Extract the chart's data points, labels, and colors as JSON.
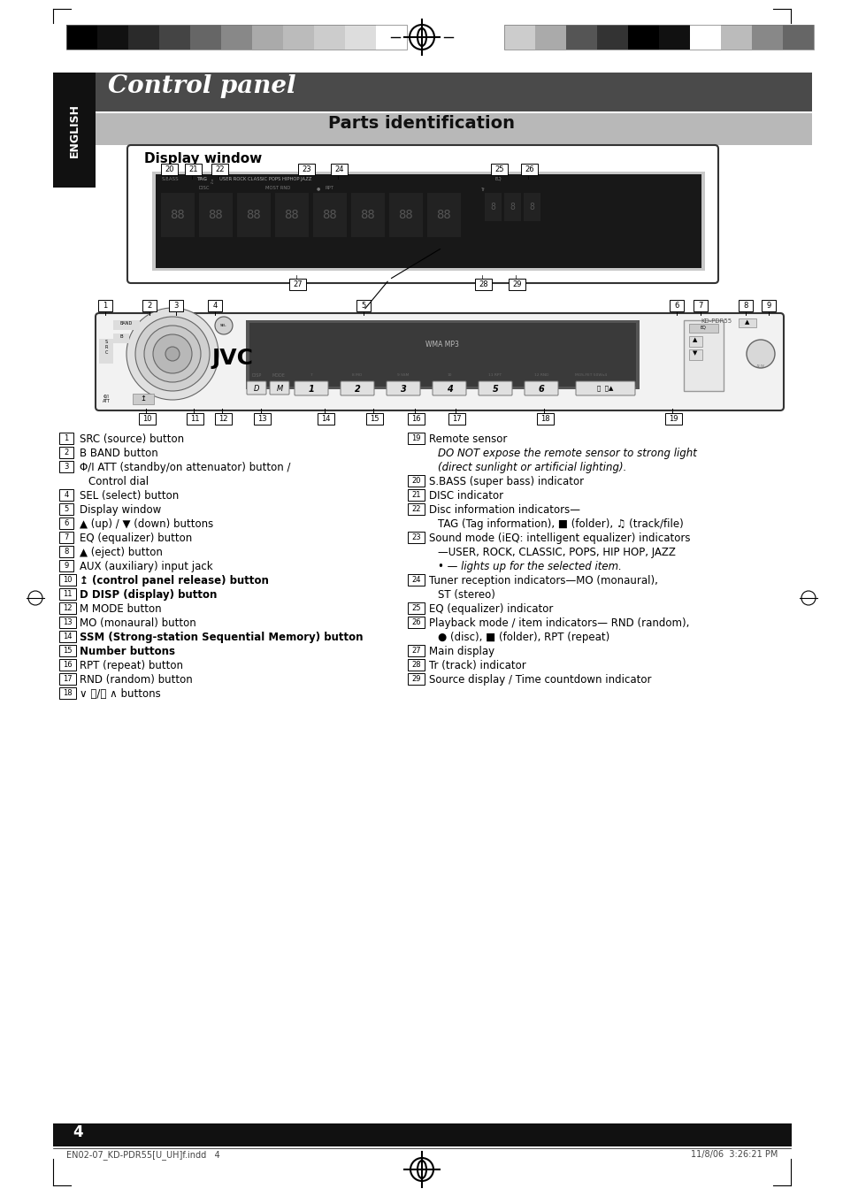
{
  "bg_color": "#ffffff",
  "title": "Control panel",
  "title_bg": "#4a4a4a",
  "section": "Parts identification",
  "section_bg": "#b8b8b8",
  "english_bg": "#111111",
  "page_num": "4",
  "footer_left": "EN02-07_KD-PDR55[U_UH]f.indd   4",
  "footer_right": "11/8/06  3:26:21 PM",
  "colors_left": [
    "#000000",
    "#111111",
    "#2a2a2a",
    "#444444",
    "#666666",
    "#888888",
    "#aaaaaa",
    "#bbbbbb",
    "#cccccc",
    "#dddddd",
    "#ffffff"
  ],
  "colors_right": [
    "#cccccc",
    "#aaaaaa",
    "#555555",
    "#333333",
    "#000000",
    "#111111",
    "#ffffff",
    "#bbbbbb",
    "#888888",
    "#666666"
  ],
  "items_left": [
    {
      "num": "1",
      "text": "SRC (source) button",
      "bold": false,
      "indent": false
    },
    {
      "num": "2",
      "text": "B BAND button",
      "bold": false,
      "indent": false
    },
    {
      "num": "3",
      "text": "Φ/I ATT (standby/on attenuator) button /",
      "bold": false,
      "indent": false
    },
    {
      "num": "",
      "text": "Control dial",
      "bold": false,
      "indent": true
    },
    {
      "num": "4",
      "text": "SEL (select) button",
      "bold": false,
      "indent": false
    },
    {
      "num": "5",
      "text": "Display window",
      "bold": false,
      "indent": false
    },
    {
      "num": "6",
      "text": "▲ (up) / ▼ (down) buttons",
      "bold": false,
      "indent": false
    },
    {
      "num": "7",
      "text": "EQ (equalizer) button",
      "bold": false,
      "indent": false
    },
    {
      "num": "8",
      "text": "▲ (eject) button",
      "bold": false,
      "indent": false
    },
    {
      "num": "9",
      "text": "AUX (auxiliary) input jack",
      "bold": false,
      "indent": false
    },
    {
      "num": "10",
      "text": "↥ (control panel release) button",
      "bold": true,
      "indent": false
    },
    {
      "num": "11",
      "text": "D DISP (display) button",
      "bold": true,
      "indent": false
    },
    {
      "num": "12",
      "text": "M MODE button",
      "bold": false,
      "indent": false
    },
    {
      "num": "13",
      "text": "MO (monaural) button",
      "bold": false,
      "indent": false
    },
    {
      "num": "14",
      "text": "SSM (Strong-station Sequential Memory) button",
      "bold": true,
      "indent": false
    },
    {
      "num": "15",
      "text": "Number buttons",
      "bold": true,
      "indent": false
    },
    {
      "num": "16",
      "text": "RPT (repeat) button",
      "bold": false,
      "indent": false
    },
    {
      "num": "17",
      "text": "RND (random) button",
      "bold": false,
      "indent": false
    },
    {
      "num": "18",
      "text": "∨ ⏮/⏭ ∧ buttons",
      "bold": false,
      "indent": false
    }
  ],
  "items_right": [
    {
      "num": "19",
      "text": "Remote sensor",
      "bold": false,
      "indent": false
    },
    {
      "num": "",
      "text": "DO NOT expose the remote sensor to strong light",
      "bold": false,
      "italic": true,
      "indent": true
    },
    {
      "num": "",
      "text": "(direct sunlight or artificial lighting).",
      "bold": false,
      "italic": true,
      "indent": true
    },
    {
      "num": "20",
      "text": "S.BASS (super bass) indicator",
      "bold": false,
      "indent": false
    },
    {
      "num": "21",
      "text": "DISC indicator",
      "bold": false,
      "indent": false
    },
    {
      "num": "22",
      "text": "Disc information indicators—",
      "bold": false,
      "indent": false
    },
    {
      "num": "",
      "text": "TAG (Tag information), ■ (folder), ♫ (track/file)",
      "bold": false,
      "indent": true
    },
    {
      "num": "23",
      "text": "Sound mode (iEQ: intelligent equalizer) indicators",
      "bold": false,
      "indent": false
    },
    {
      "num": "",
      "text": "—USER, ROCK, CLASSIC, POPS, HIP HOP, JAZZ",
      "bold": false,
      "indent": true
    },
    {
      "num": "",
      "text": "• — lights up for the selected item.",
      "bold": false,
      "italic": true,
      "indent": true
    },
    {
      "num": "24",
      "text": "Tuner reception indicators—MO (monaural),",
      "bold": false,
      "indent": false
    },
    {
      "num": "",
      "text": "ST (stereo)",
      "bold": false,
      "indent": true
    },
    {
      "num": "25",
      "text": "EQ (equalizer) indicator",
      "bold": false,
      "indent": false
    },
    {
      "num": "26",
      "text": "Playback mode / item indicators— RND (random),",
      "bold": false,
      "indent": false
    },
    {
      "num": "",
      "text": "● (disc), ■ (folder), RPT (repeat)",
      "bold": false,
      "indent": true
    },
    {
      "num": "27",
      "text": "Main display",
      "bold": false,
      "indent": false
    },
    {
      "num": "28",
      "text": "Tr (track) indicator",
      "bold": false,
      "indent": false
    },
    {
      "num": "29",
      "text": "Source display / Time countdown indicator",
      "bold": false,
      "indent": false
    }
  ]
}
